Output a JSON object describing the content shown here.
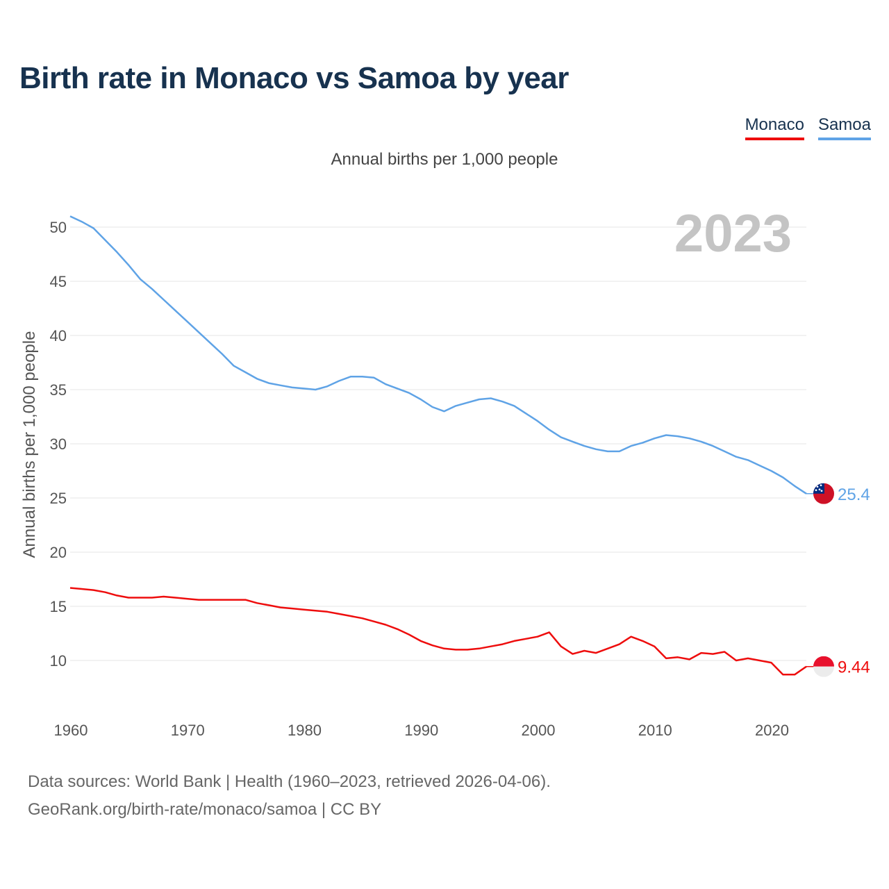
{
  "title": "Birth rate in Monaco vs Samoa by year",
  "subtitle": "Annual births per 1,000 people",
  "legend": [
    {
      "label": "Monaco",
      "color": "#ee0d0d"
    },
    {
      "label": "Samoa",
      "color": "#5fa3e6"
    }
  ],
  "current_year": "2023",
  "source": {
    "line1": "Data sources: World Bank | Health (1960–2023, retrieved 2026-04-06).",
    "line2": "GeoRank.org/birth-rate/monaco/samoa | CC BY"
  },
  "chart_data": {
    "type": "line",
    "title": "Birth rate in Monaco vs Samoa by year",
    "xlabel": "",
    "ylabel": "Annual births per 1,000 people",
    "xlim": [
      1960,
      2023
    ],
    "ylim": [
      5,
      52
    ],
    "x_ticks": [
      1960,
      1970,
      1980,
      1990,
      2000,
      2010,
      2020
    ],
    "y_ticks": [
      10,
      15,
      20,
      25,
      30,
      35,
      40,
      45,
      50
    ],
    "grid": true,
    "legend_position": "top-right",
    "x": [
      1960,
      1961,
      1962,
      1963,
      1964,
      1965,
      1966,
      1967,
      1968,
      1969,
      1970,
      1971,
      1972,
      1973,
      1974,
      1975,
      1976,
      1977,
      1978,
      1979,
      1980,
      1981,
      1982,
      1983,
      1984,
      1985,
      1986,
      1987,
      1988,
      1989,
      1990,
      1991,
      1992,
      1993,
      1994,
      1995,
      1996,
      1997,
      1998,
      1999,
      2000,
      2001,
      2002,
      2003,
      2004,
      2005,
      2006,
      2007,
      2008,
      2009,
      2010,
      2011,
      2012,
      2013,
      2014,
      2015,
      2016,
      2017,
      2018,
      2019,
      2020,
      2021,
      2022,
      2023
    ],
    "series": [
      {
        "name": "Samoa",
        "color": "#5fa3e6",
        "end_label": "25.4",
        "values": [
          51.0,
          50.5,
          49.9,
          48.8,
          47.7,
          46.5,
          45.2,
          44.3,
          43.3,
          42.3,
          41.3,
          40.3,
          39.3,
          38.3,
          37.2,
          36.6,
          36.0,
          35.6,
          35.4,
          35.2,
          35.1,
          35.0,
          35.3,
          35.8,
          36.2,
          36.2,
          36.1,
          35.5,
          35.1,
          34.7,
          34.1,
          33.4,
          33.0,
          33.5,
          33.8,
          34.1,
          34.2,
          33.9,
          33.5,
          32.8,
          32.1,
          31.3,
          30.6,
          30.2,
          29.8,
          29.5,
          29.3,
          29.3,
          29.8,
          30.1,
          30.5,
          30.8,
          30.7,
          30.5,
          30.2,
          29.8,
          29.3,
          28.8,
          28.5,
          28.0,
          27.5,
          26.9,
          26.1,
          25.4
        ]
      },
      {
        "name": "Monaco",
        "color": "#ee0d0d",
        "end_label": "9.44",
        "values": [
          16.7,
          16.6,
          16.5,
          16.3,
          16.0,
          15.8,
          15.8,
          15.8,
          15.9,
          15.8,
          15.7,
          15.6,
          15.6,
          15.6,
          15.6,
          15.6,
          15.3,
          15.1,
          14.9,
          14.8,
          14.7,
          14.6,
          14.5,
          14.3,
          14.1,
          13.9,
          13.6,
          13.3,
          12.9,
          12.4,
          11.8,
          11.4,
          11.1,
          11.0,
          11.0,
          11.1,
          11.3,
          11.5,
          11.8,
          12.0,
          12.2,
          12.6,
          11.3,
          10.6,
          10.9,
          10.7,
          11.1,
          11.5,
          12.2,
          11.8,
          11.3,
          10.2,
          10.3,
          10.1,
          10.7,
          10.6,
          10.8,
          10.0,
          10.2,
          10.0,
          9.8,
          8.7,
          8.7,
          9.44
        ]
      }
    ]
  }
}
